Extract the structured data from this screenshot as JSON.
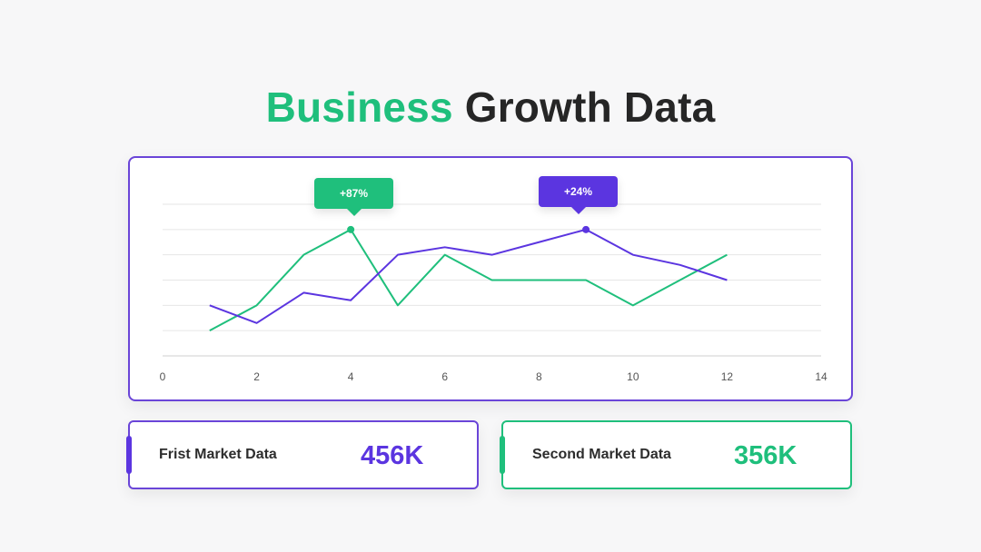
{
  "title": {
    "accent": "Business",
    "rest": "Growth Data"
  },
  "colors": {
    "green": "#1fbf7c",
    "purple": "#5b35e0",
    "border_purple": "#6a45d8"
  },
  "chart_data": {
    "type": "line",
    "xlim": [
      0,
      14
    ],
    "xticks": [
      0,
      2,
      4,
      6,
      8,
      10,
      12,
      14
    ],
    "ylim": [
      0,
      10
    ],
    "grid": true,
    "series": [
      {
        "color": "#1fbf7c",
        "x": [
          1,
          2,
          3,
          4,
          5,
          6,
          7,
          8,
          9,
          10,
          11,
          12
        ],
        "y": [
          1,
          2,
          4,
          5,
          2,
          4,
          3,
          3,
          3,
          2,
          3,
          4
        ]
      },
      {
        "color": "#5b35e0",
        "x": [
          1,
          2,
          3,
          4,
          5,
          6,
          7,
          8,
          9,
          10,
          11,
          12
        ],
        "y": [
          2,
          1.3,
          2.5,
          2.2,
          4,
          4.3,
          4,
          4.5,
          5,
          4,
          3.6,
          3
        ]
      }
    ],
    "annotations": [
      {
        "text": "+87%",
        "x": 4,
        "y": 5,
        "color": "#1fbf7c"
      },
      {
        "text": "+24%",
        "x": 9,
        "y": 5,
        "color": "#5b35e0"
      }
    ]
  },
  "cards": [
    {
      "label": "Frist Market Data",
      "value": "456K",
      "color": "#5b35e0"
    },
    {
      "label": "Second Market Data",
      "value": "356K",
      "color": "#1fbf7c"
    }
  ]
}
